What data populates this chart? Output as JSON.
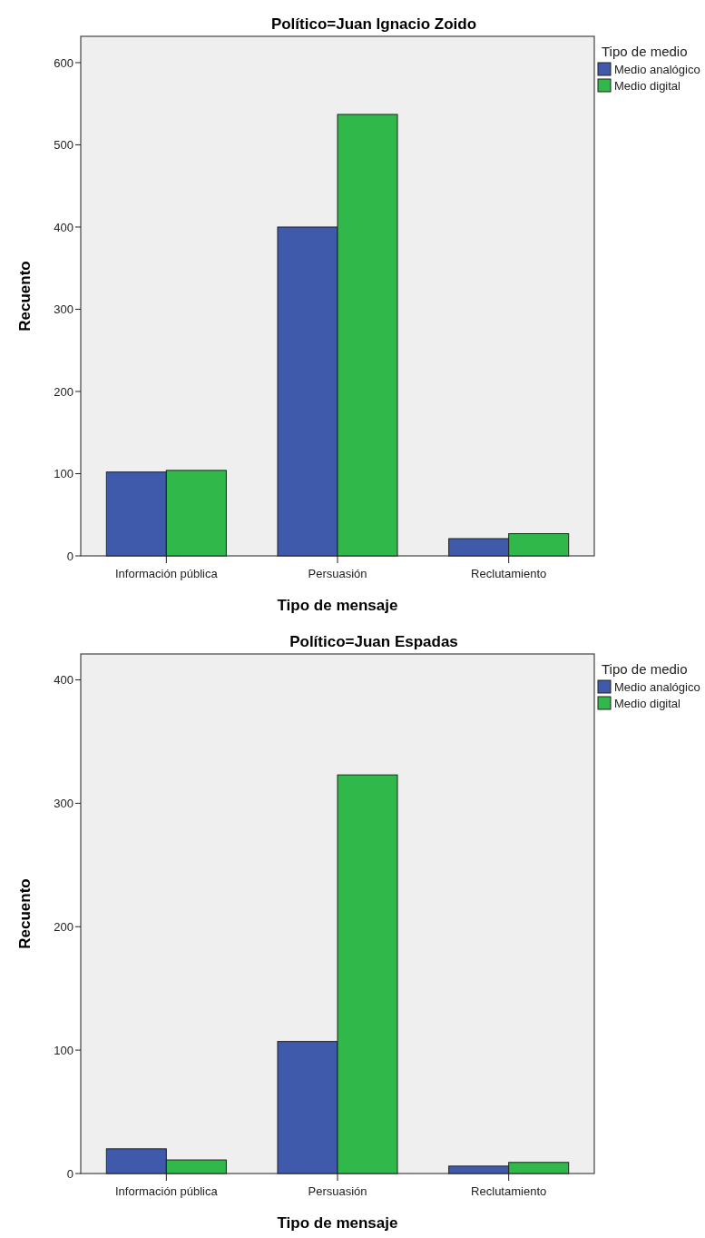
{
  "chart_data": [
    {
      "type": "bar",
      "title": "Político=Juan Ignacio Zoido",
      "xlabel": "Tipo de mensaje",
      "ylabel": "Recuento",
      "legend_title": "Tipo de medio",
      "categories": [
        "Información pública",
        "Persuasión",
        "Reclutamiento"
      ],
      "series": [
        {
          "name": "Medio analógico",
          "color": "#3f59ab",
          "values": [
            102,
            400,
            21
          ]
        },
        {
          "name": "Medio digital",
          "color": "#31b84b",
          "values": [
            104,
            537,
            27
          ]
        }
      ],
      "ylim": [
        0,
        632
      ],
      "yticks": [
        0,
        100,
        200,
        300,
        400,
        500,
        600
      ],
      "grid": false,
      "legend": "right"
    },
    {
      "type": "bar",
      "title": "Político=Juan Espadas",
      "xlabel": "Tipo de mensaje",
      "ylabel": "Recuento",
      "legend_title": "Tipo de medio",
      "categories": [
        "Información pública",
        "Persuasión",
        "Reclutamiento"
      ],
      "series": [
        {
          "name": "Medio analógico",
          "color": "#3f59ab",
          "values": [
            20,
            107,
            6
          ]
        },
        {
          "name": "Medio digital",
          "color": "#31b84b",
          "values": [
            11,
            323,
            9
          ]
        }
      ],
      "ylim": [
        0,
        421
      ],
      "yticks": [
        0,
        100,
        200,
        300,
        400
      ],
      "grid": false,
      "legend": "right"
    }
  ]
}
